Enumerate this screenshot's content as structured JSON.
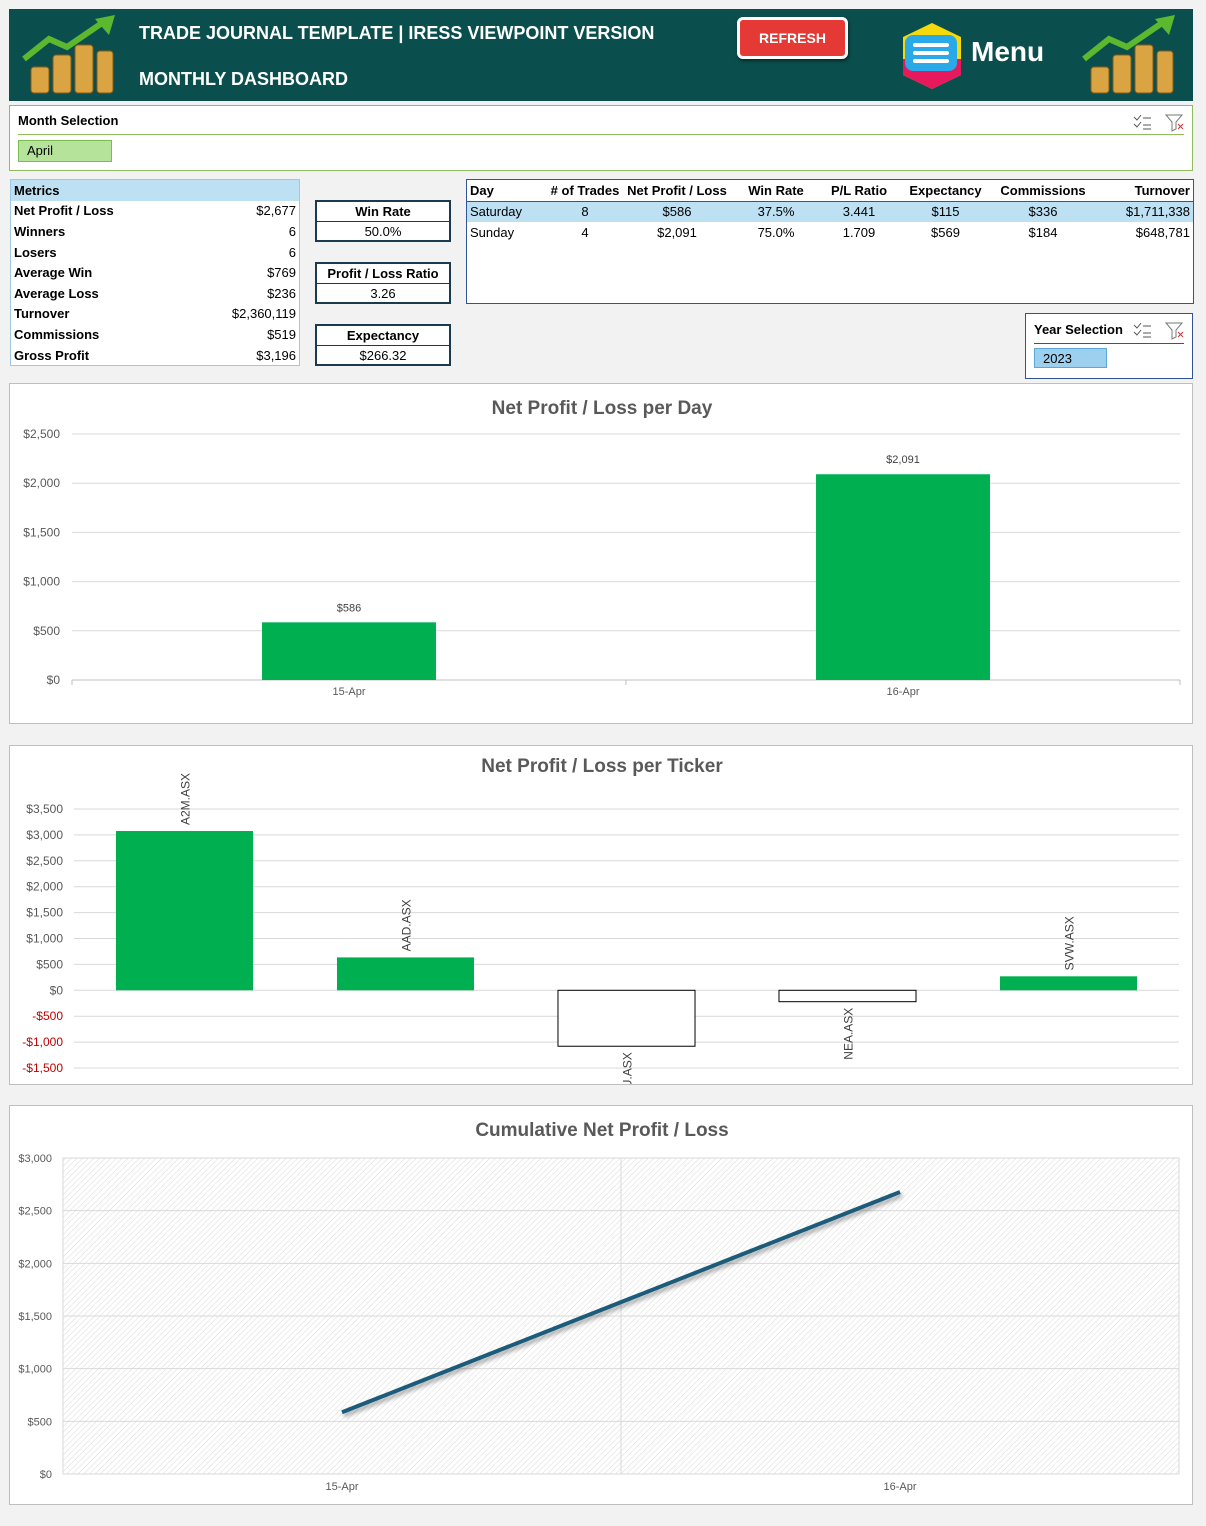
{
  "header": {
    "title": "TRADE JOURNAL TEMPLATE | IRESS VIEWPOINT VERSION",
    "subtitle": "MONTHLY DASHBOARD",
    "refresh_button": "REFRESH",
    "menu_button": "Menu"
  },
  "month_selection": {
    "label": "Month Selection",
    "selected": "April"
  },
  "metrics": {
    "header": "Metrics",
    "rows": [
      [
        "Net Profit / Loss",
        "$2,677"
      ],
      [
        "Winners",
        "6"
      ],
      [
        "Losers",
        "6"
      ],
      [
        "Average Win",
        "$769"
      ],
      [
        "Average Loss",
        "$236"
      ],
      [
        "Turnover",
        "$2,360,119"
      ],
      [
        "Commissions",
        "$519"
      ],
      [
        "Gross Profit",
        "$3,196"
      ]
    ]
  },
  "kpis": [
    {
      "label": "Win Rate",
      "value": "50.0%"
    },
    {
      "label": "Profit / Loss Ratio",
      "value": "3.26"
    },
    {
      "label": "Expectancy",
      "value": "$266.32"
    }
  ],
  "day_table": {
    "columns": [
      "Day",
      "# of Trades",
      "Net Profit / Loss",
      "Win Rate",
      "P/L Ratio",
      "Expectancy",
      "Commissions",
      "Turnover"
    ],
    "rows": [
      [
        "Saturday",
        "8",
        "$586",
        "37.5%",
        "3.441",
        "$115",
        "$336",
        "$1,711,338"
      ],
      [
        "Sunday",
        "4",
        "$2,091",
        "75.0%",
        "1.709",
        "$569",
        "$184",
        "$648,781"
      ]
    ]
  },
  "year_selection": {
    "label": "Year Selection",
    "selected": "2023"
  },
  "chart_data": [
    {
      "type": "bar",
      "title": "Net Profit / Loss per Day",
      "categories": [
        "15-Apr",
        "16-Apr"
      ],
      "values": [
        586,
        2091
      ],
      "value_labels": [
        "$586",
        "$2,091"
      ],
      "color": "#00b050",
      "ylim": [
        0,
        2500
      ],
      "yticks": [
        {
          "value": 0,
          "label": "$0"
        },
        {
          "value": 500,
          "label": "$500"
        },
        {
          "value": 1000,
          "label": "$1,000"
        },
        {
          "value": 1500,
          "label": "$1,500"
        },
        {
          "value": 2000,
          "label": "$2,000"
        },
        {
          "value": 2500,
          "label": "$2,500"
        }
      ],
      "grid": true
    },
    {
      "type": "bar",
      "title": "Net Profit / Loss per Ticker",
      "categories": [
        "A2M.ASX",
        "AAD.ASX",
        "ALU.ASX",
        "NEA.ASX",
        "SVW.ASX"
      ],
      "values": [
        3075,
        635,
        -1080,
        -220,
        270
      ],
      "color": "#00b050",
      "negative_color": "#ffffff",
      "negative_tick_color": "#c00000",
      "category_label_position": "bar-end",
      "ylim": [
        -1500,
        3500
      ],
      "yticks": [
        {
          "value": -1500,
          "label": "-$1,500"
        },
        {
          "value": -1000,
          "label": "-$1,000"
        },
        {
          "value": -500,
          "label": "-$500"
        },
        {
          "value": 0,
          "label": "$0"
        },
        {
          "value": 500,
          "label": "$500"
        },
        {
          "value": 1000,
          "label": "$1,000"
        },
        {
          "value": 1500,
          "label": "$1,500"
        },
        {
          "value": 2000,
          "label": "$2,000"
        },
        {
          "value": 2500,
          "label": "$2,500"
        },
        {
          "value": 3000,
          "label": "$3,000"
        },
        {
          "value": 3500,
          "label": "$3,500"
        }
      ],
      "grid": true
    },
    {
      "type": "line",
      "title": "Cumulative Net Profit / Loss",
      "categories": [
        "15-Apr",
        "16-Apr"
      ],
      "values": [
        586,
        2677
      ],
      "color": "#1f5c7a",
      "plot_fill": "hatch",
      "ylim": [
        0,
        3000
      ],
      "yticks": [
        {
          "value": 0,
          "label": "$0"
        },
        {
          "value": 500,
          "label": "$500"
        },
        {
          "value": 1000,
          "label": "$1,000"
        },
        {
          "value": 1500,
          "label": "$1,500"
        },
        {
          "value": 2000,
          "label": "$2,000"
        },
        {
          "value": 2500,
          "label": "$2,500"
        },
        {
          "value": 3000,
          "label": "$3,000"
        }
      ],
      "grid": true
    }
  ]
}
